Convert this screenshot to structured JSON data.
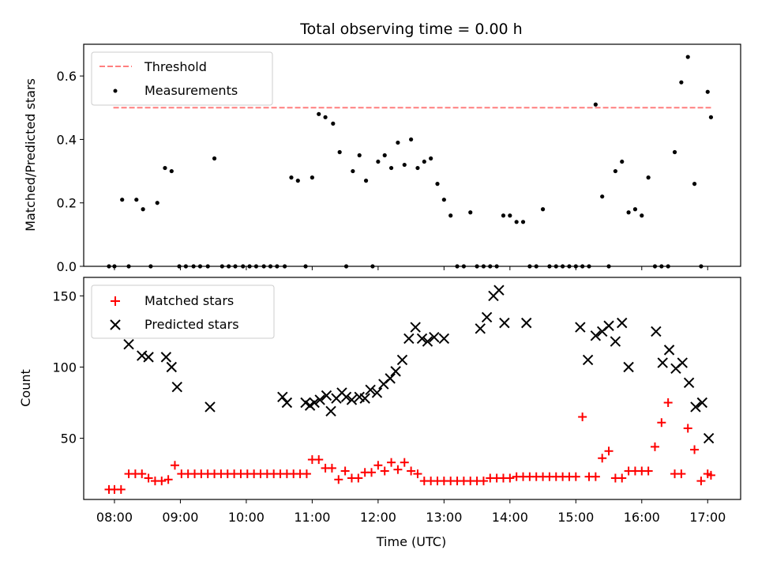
{
  "chart_data": [
    {
      "type": "scatter",
      "title": "Total observing time = 0.00 h",
      "xlabel": "",
      "ylabel": "Matched/Predicted stars",
      "xlim": [
        "07:32",
        "17:30"
      ],
      "ylim": [
        0,
        0.7
      ],
      "yticks": [
        0.0,
        0.2,
        0.4,
        0.6
      ],
      "ytick_labels": [
        "0.0",
        "0.2",
        "0.4",
        "0.6"
      ],
      "legend": {
        "placement": "top-left",
        "entries": [
          "Threshold",
          "Measurements"
        ]
      },
      "colors": {
        "threshold": "#ff7f7f",
        "measurements": "#000000"
      },
      "series": [
        {
          "name": "Threshold",
          "style": "dashed-line",
          "x": [
            "07:59",
            "17:03"
          ],
          "y": [
            0.5,
            0.5
          ]
        },
        {
          "name": "Measurements",
          "style": "dots",
          "x": [
            "07:55",
            "08:00",
            "08:07",
            "08:13",
            "08:20",
            "08:26",
            "08:33",
            "08:39",
            "08:46",
            "08:52",
            "08:59",
            "09:05",
            "09:12",
            "09:18",
            "09:25",
            "09:31",
            "09:38",
            "09:44",
            "09:50",
            "09:57",
            "10:03",
            "10:09",
            "10:16",
            "10:22",
            "10:28",
            "10:35",
            "10:41",
            "10:47",
            "10:54",
            "11:00",
            "11:06",
            "11:12",
            "11:19",
            "11:25",
            "11:31",
            "11:37",
            "11:43",
            "11:49",
            "11:55",
            "12:00",
            "12:06",
            "12:12",
            "12:18",
            "12:24",
            "12:30",
            "12:36",
            "12:42",
            "12:48",
            "12:54",
            "13:00",
            "13:06",
            "13:12",
            "13:18",
            "13:24",
            "13:30",
            "13:36",
            "13:42",
            "13:48",
            "13:54",
            "14:00",
            "14:06",
            "14:12",
            "14:18",
            "14:24",
            "14:30",
            "14:36",
            "14:42",
            "14:48",
            "14:54",
            "15:00",
            "15:06",
            "15:12",
            "15:18",
            "15:24",
            "15:30",
            "15:36",
            "15:42",
            "15:48",
            "15:54",
            "16:00",
            "16:06",
            "16:12",
            "16:18",
            "16:24",
            "16:30",
            "16:36",
            "16:42",
            "16:48",
            "16:54",
            "17:00",
            "17:03"
          ],
          "y": [
            0,
            0,
            0.21,
            0,
            0.21,
            0.18,
            0,
            0.2,
            0.31,
            0.3,
            0,
            0,
            0,
            0,
            0,
            0.34,
            0,
            0,
            0,
            0,
            0,
            0,
            0,
            0,
            0,
            0,
            0.28,
            0.27,
            0,
            0.28,
            0.48,
            0.47,
            0.45,
            0.36,
            0,
            0.3,
            0.35,
            0.27,
            0,
            0.33,
            0.35,
            0.31,
            0.39,
            0.32,
            0.4,
            0.31,
            0.33,
            0.34,
            0.26,
            0.21,
            0.16,
            0,
            0,
            0.17,
            0,
            0,
            0,
            0,
            0.16,
            0.16,
            0.14,
            0.14,
            0,
            0,
            0.18,
            0,
            0,
            0,
            0,
            0,
            0,
            0,
            0.51,
            0.22,
            0,
            0.3,
            0.33,
            0.17,
            0.18,
            0.16,
            0.28,
            0,
            0,
            0,
            0.36,
            0.58,
            0.66,
            0.26,
            0,
            0.55,
            0.47
          ]
        }
      ]
    },
    {
      "type": "scatter",
      "title": "",
      "xlabel": "Time (UTC)",
      "ylabel": "Count",
      "xlim": [
        "07:32",
        "17:30"
      ],
      "ylim": [
        7,
        163
      ],
      "yticks": [
        50,
        100,
        150
      ],
      "ytick_labels": [
        "50",
        "100",
        "150"
      ],
      "xticks": [
        "08:00",
        "09:00",
        "10:00",
        "11:00",
        "12:00",
        "13:00",
        "14:00",
        "15:00",
        "16:00",
        "17:00"
      ],
      "legend": {
        "placement": "top-left",
        "entries": [
          "Matched stars",
          "Predicted stars"
        ]
      },
      "colors": {
        "matched": "#ff0000",
        "predicted": "#000000"
      },
      "series": [
        {
          "name": "Matched stars",
          "marker": "+",
          "x": [
            "07:55",
            "08:00",
            "08:06",
            "08:13",
            "08:19",
            "08:25",
            "08:31",
            "08:37",
            "08:43",
            "08:49",
            "08:55",
            "09:01",
            "09:07",
            "09:13",
            "09:19",
            "09:25",
            "09:31",
            "09:37",
            "09:43",
            "09:49",
            "09:55",
            "10:01",
            "10:07",
            "10:13",
            "10:19",
            "10:25",
            "10:31",
            "10:37",
            "10:43",
            "10:49",
            "10:55",
            "11:00",
            "11:06",
            "11:12",
            "11:18",
            "11:24",
            "11:30",
            "11:36",
            "11:42",
            "11:48",
            "11:54",
            "12:00",
            "12:06",
            "12:12",
            "12:18",
            "12:24",
            "12:30",
            "12:36",
            "12:42",
            "12:48",
            "12:54",
            "13:00",
            "13:06",
            "13:12",
            "13:18",
            "13:24",
            "13:30",
            "13:36",
            "13:42",
            "13:48",
            "13:54",
            "14:00",
            "14:06",
            "14:12",
            "14:18",
            "14:24",
            "14:30",
            "14:36",
            "14:42",
            "14:48",
            "14:54",
            "15:00",
            "15:06",
            "15:12",
            "15:18",
            "15:24",
            "15:30",
            "15:36",
            "15:42",
            "15:48",
            "15:54",
            "16:00",
            "16:06",
            "16:12",
            "16:18",
            "16:24",
            "16:30",
            "16:36",
            "16:42",
            "16:48",
            "16:54",
            "17:00",
            "17:03"
          ],
          "y": [
            14,
            14,
            14,
            25,
            25,
            25,
            22,
            20,
            20,
            21,
            31,
            25,
            25,
            25,
            25,
            25,
            25,
            25,
            25,
            25,
            25,
            25,
            25,
            25,
            25,
            25,
            25,
            25,
            25,
            25,
            25,
            35,
            35,
            29,
            29,
            21,
            27,
            22,
            22,
            26,
            26,
            31,
            27,
            33,
            28,
            33,
            27,
            25,
            20,
            20,
            20,
            20,
            20,
            20,
            20,
            20,
            20,
            20,
            22,
            22,
            22,
            22,
            23,
            23,
            23,
            23,
            23,
            23,
            23,
            23,
            23,
            23,
            65,
            23,
            23,
            36,
            41,
            22,
            22,
            27,
            27,
            27,
            27,
            44,
            61,
            75,
            25,
            25,
            57,
            42,
            20,
            25,
            24
          ]
        },
        {
          "name": "Predicted stars",
          "marker": "x",
          "x": [
            "08:13",
            "08:25",
            "08:31",
            "08:47",
            "08:52",
            "08:57",
            "09:27",
            "10:33",
            "10:37",
            "10:54",
            "10:58",
            "11:02",
            "11:07",
            "11:13",
            "11:17",
            "11:22",
            "11:27",
            "11:31",
            "11:36",
            "11:43",
            "11:48",
            "11:53",
            "11:59",
            "12:05",
            "12:11",
            "12:16",
            "12:22",
            "12:28",
            "12:34",
            "12:40",
            "12:45",
            "12:51",
            "13:00",
            "13:33",
            "13:39",
            "13:45",
            "13:50",
            "13:55",
            "14:15",
            "15:04",
            "15:11",
            "15:18",
            "15:24",
            "15:30",
            "15:36",
            "15:42",
            "15:48",
            "16:13",
            "16:19",
            "16:25",
            "16:31",
            "16:37",
            "16:43",
            "16:49",
            "16:55",
            "17:01"
          ],
          "y": [
            116,
            108,
            107,
            107,
            100,
            86,
            72,
            79,
            75,
            75,
            73,
            75,
            77,
            80,
            69,
            78,
            82,
            79,
            77,
            79,
            78,
            84,
            82,
            88,
            92,
            97,
            105,
            120,
            128,
            120,
            118,
            121,
            120,
            127,
            135,
            150,
            154,
            131,
            131,
            128,
            105,
            122,
            125,
            129,
            118,
            131,
            100,
            125,
            103,
            112,
            99,
            103,
            89,
            72,
            75,
            50
          ]
        }
      ]
    }
  ]
}
